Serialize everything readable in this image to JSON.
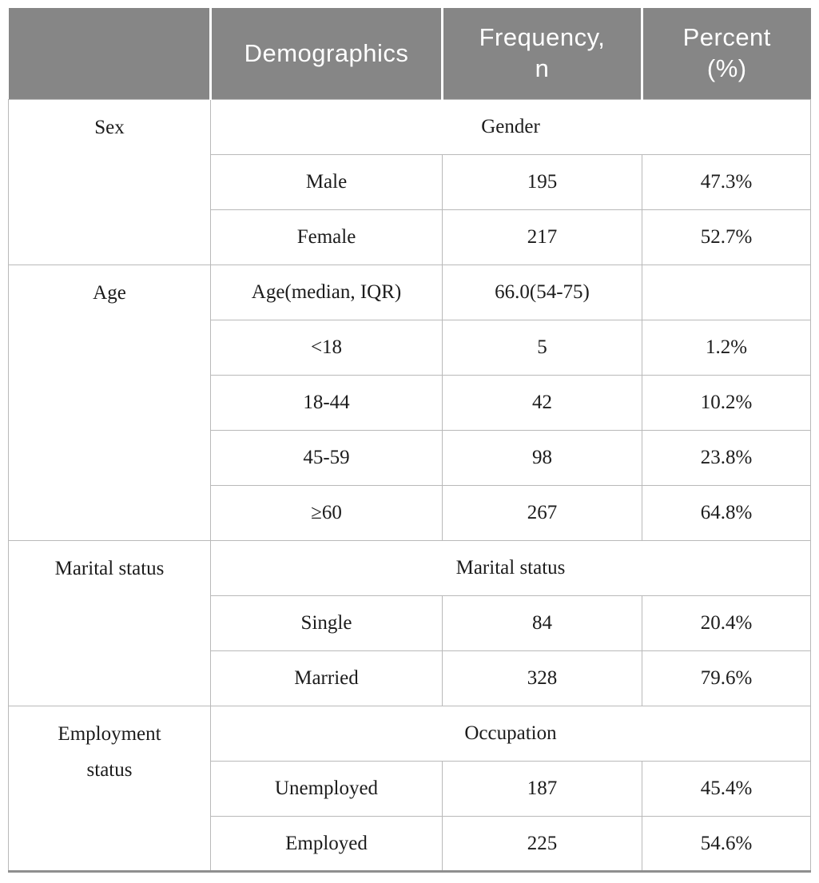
{
  "table": {
    "header": [
      "",
      "Demographics",
      "Frequency,\nn",
      "Percent\n(%)"
    ],
    "groups": [
      {
        "label": "Sex",
        "subheader": "Gender",
        "rows": [
          [
            "Male",
            "195",
            "47.3%"
          ],
          [
            "Female",
            "217",
            "52.7%"
          ]
        ]
      },
      {
        "label": "Age",
        "measure_row": [
          "Age(median, IQR)",
          "66.0(54-75)",
          ""
        ],
        "rows": [
          [
            "<18",
            "5",
            "1.2%"
          ],
          [
            "18-44",
            "42",
            "10.2%"
          ],
          [
            "45-59",
            "98",
            "23.8%"
          ],
          [
            "≥60",
            "267",
            "64.8%"
          ]
        ]
      },
      {
        "label": "Marital status",
        "subheader": "Marital status",
        "rows": [
          [
            "Single",
            "84",
            "20.4%"
          ],
          [
            "Married",
            "328",
            "79.6%"
          ]
        ]
      },
      {
        "label": "Employment\nstatus",
        "subheader": "Occupation",
        "rows": [
          [
            "Unemployed",
            "187",
            "45.4%"
          ],
          [
            "Employed",
            "225",
            "54.6%"
          ]
        ]
      }
    ]
  },
  "colors": {
    "header_bg": "#868686",
    "header_text": "#ffffff",
    "body_text": "#1c1c1c",
    "grid_border": "#b9b9b9",
    "bottom_border": "#8f8f8f"
  }
}
